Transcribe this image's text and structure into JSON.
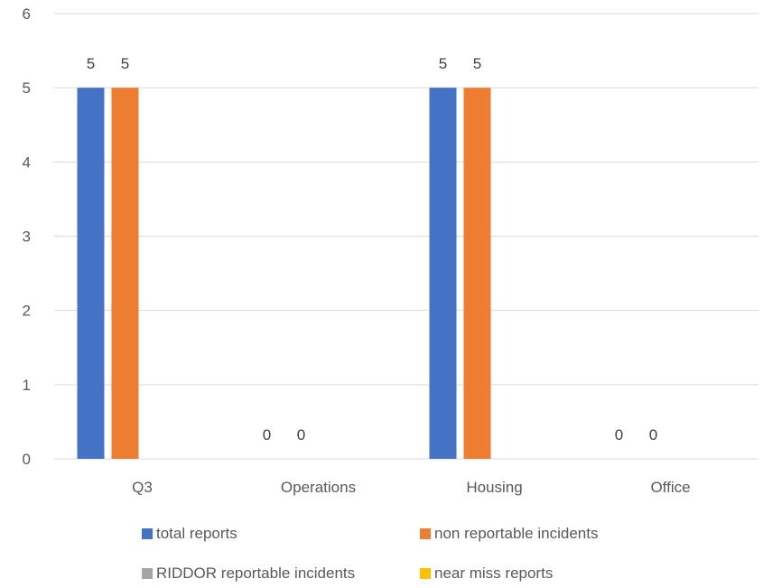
{
  "chart_data": {
    "type": "bar",
    "categories": [
      "Q3",
      "Operations",
      "Housing",
      "Office"
    ],
    "series": [
      {
        "name": "total reports",
        "color": "#4472C4",
        "values": [
          5,
          0,
          5,
          0
        ]
      },
      {
        "name": "non reportable incidents",
        "color": "#ED7D31",
        "values": [
          5,
          0,
          5,
          0
        ]
      },
      {
        "name": "RIDDOR reportable incidents",
        "color": "#A5A5A5",
        "values": [
          null,
          null,
          null,
          null
        ]
      },
      {
        "name": "near miss reports",
        "color": "#FFC000",
        "values": [
          null,
          null,
          null,
          null
        ]
      }
    ],
    "data_labels": [
      [
        "5",
        "0",
        "5",
        "0"
      ],
      [
        "5",
        "0",
        "5",
        "0"
      ]
    ],
    "y_ticks": [
      "0",
      "1",
      "2",
      "3",
      "4",
      "5",
      "6"
    ],
    "ylim": [
      0,
      6
    ],
    "grid": true,
    "legend_position": "bottom",
    "title": "",
    "xlabel": "",
    "ylabel": ""
  }
}
